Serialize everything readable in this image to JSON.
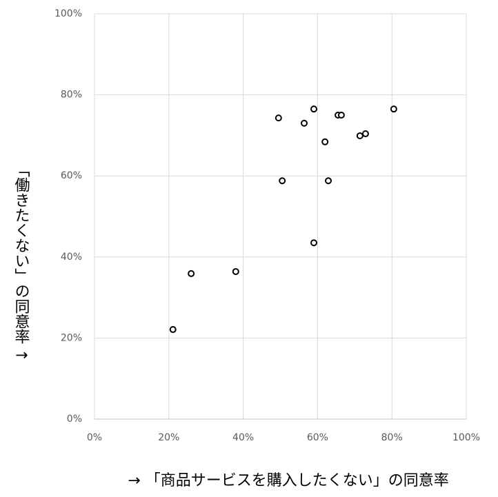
{
  "chart_data": {
    "type": "scatter",
    "x_label": "→ 「商品サービスを購入したくない」の同意率",
    "y_label": "「働きたくない」の同意率 ↑",
    "x": [
      21.1,
      26.0,
      38.0,
      49.5,
      50.5,
      56.4,
      59.0,
      59.0,
      62.0,
      62.9,
      65.5,
      66.4,
      71.4,
      72.9,
      80.5
    ],
    "values": [
      22.1,
      35.9,
      36.4,
      74.3,
      58.8,
      73.0,
      76.5,
      43.5,
      68.4,
      58.8,
      75.0,
      75.0,
      69.9,
      70.4,
      76.5
    ],
    "color": "#000000",
    "xlim": [
      0,
      100
    ],
    "ylim": [
      0,
      100
    ],
    "xticks": [
      {
        "value": 0,
        "label": "0%"
      },
      {
        "value": 20,
        "label": "20%"
      },
      {
        "value": 40,
        "label": "40%"
      },
      {
        "value": 60,
        "label": "60%"
      },
      {
        "value": 80,
        "label": "80%"
      },
      {
        "value": 100,
        "label": "100%"
      }
    ],
    "yticks": [
      {
        "value": 0,
        "label": "0%"
      },
      {
        "value": 20,
        "label": "20%"
      },
      {
        "value": 40,
        "label": "40%"
      },
      {
        "value": 60,
        "label": "60%"
      },
      {
        "value": 80,
        "label": "80%"
      },
      {
        "value": 100,
        "label": "100%"
      }
    ],
    "grid": true
  }
}
